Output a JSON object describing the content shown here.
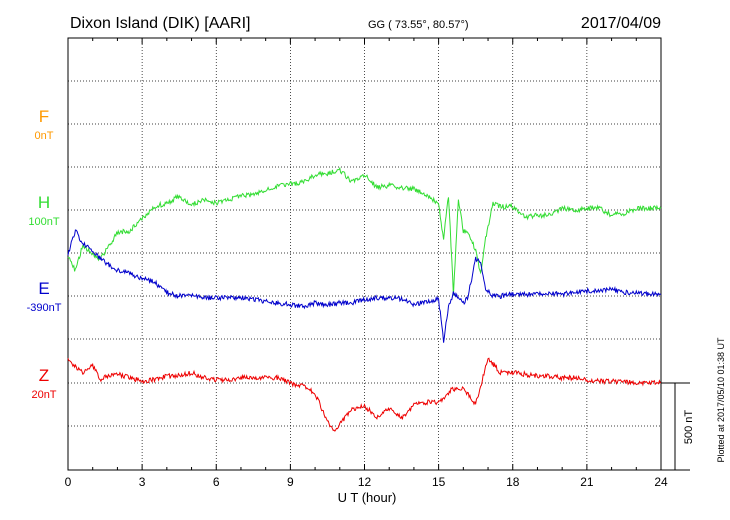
{
  "header": {
    "station": "Dixon Island (DIK)  [AARI]",
    "coords": "GG ( 73.55°,  80.57°)",
    "date": "2017/04/09"
  },
  "footer": {
    "plotted": "Plotted at 2017/05/10 01:38 UT",
    "scale_label": "500 nT"
  },
  "chart_data": {
    "type": "line",
    "xlabel": "U T (hour)",
    "xlim": [
      0,
      24
    ],
    "xticks": [
      "0",
      "3",
      "6",
      "9",
      "12",
      "15",
      "18",
      "21",
      "24"
    ],
    "grid": true,
    "scale_bar_nT": 500,
    "series": [
      {
        "name": "F",
        "baseline_label": "0nT",
        "color": "#ff9900",
        "x": [],
        "y": []
      },
      {
        "name": "H",
        "baseline_label": "100nT",
        "color": "#33dd33",
        "x": [
          0,
          0.3,
          0.6,
          1.0,
          1.3,
          1.6,
          2.0,
          2.5,
          3.0,
          3.5,
          4.0,
          4.5,
          5.0,
          5.5,
          6.0,
          6.5,
          7.0,
          7.5,
          8.0,
          8.5,
          9.0,
          9.5,
          10.0,
          10.5,
          11.0,
          11.5,
          12.0,
          12.5,
          13.0,
          13.5,
          14.0,
          14.5,
          15.0,
          15.2,
          15.4,
          15.6,
          15.8,
          16.0,
          16.2,
          16.5,
          16.7,
          16.9,
          17.2,
          17.5,
          18.0,
          18.5,
          19.0,
          19.5,
          20.0,
          20.5,
          21.0,
          21.5,
          22.0,
          22.5,
          23.0,
          23.5,
          24.0
        ],
        "y": [
          -270,
          -350,
          -200,
          -260,
          -280,
          -220,
          -130,
          -120,
          -50,
          20,
          40,
          80,
          30,
          60,
          40,
          60,
          80,
          90,
          110,
          140,
          150,
          160,
          200,
          210,
          230,
          160,
          200,
          130,
          140,
          130,
          120,
          90,
          30,
          -170,
          80,
          -480,
          60,
          -120,
          -130,
          -230,
          -370,
          -160,
          40,
          20,
          20,
          -40,
          -30,
          -30,
          10,
          0,
          10,
          10,
          -30,
          -20,
          10,
          10,
          10
        ]
      },
      {
        "name": "E",
        "baseline_label": "-390nT",
        "color": "#0000cc",
        "x": [
          0,
          0.3,
          0.6,
          1.0,
          1.3,
          1.6,
          2.0,
          2.5,
          3.0,
          3.5,
          4.0,
          4.5,
          5.0,
          5.5,
          6.0,
          6.5,
          7.0,
          7.5,
          8.0,
          8.5,
          9.0,
          9.5,
          10.0,
          10.5,
          11.0,
          11.5,
          12.0,
          12.5,
          13.0,
          13.5,
          14.0,
          14.5,
          15.0,
          15.2,
          15.4,
          15.6,
          15.8,
          16.0,
          16.2,
          16.5,
          16.7,
          16.9,
          17.2,
          17.5,
          18.0,
          18.5,
          19.0,
          19.5,
          20.0,
          20.5,
          21.0,
          21.5,
          22.0,
          22.5,
          23.0,
          23.5,
          24.0
        ],
        "y": [
          240,
          380,
          300,
          260,
          220,
          180,
          150,
          130,
          100,
          80,
          20,
          0,
          0,
          -10,
          -10,
          -10,
          -10,
          -20,
          -30,
          -40,
          -50,
          -60,
          -40,
          -50,
          -40,
          -40,
          -20,
          -10,
          -10,
          -20,
          -50,
          -30,
          -20,
          -260,
          -60,
          20,
          -10,
          -40,
          0,
          220,
          180,
          40,
          0,
          0,
          10,
          10,
          10,
          20,
          10,
          20,
          30,
          30,
          40,
          20,
          20,
          10,
          10
        ]
      },
      {
        "name": "Z",
        "baseline_label": "20nT",
        "color": "#ee0000",
        "x": [
          0,
          0.3,
          0.6,
          1.0,
          1.3,
          1.6,
          2.0,
          2.5,
          3.0,
          3.5,
          4.0,
          4.5,
          5.0,
          5.5,
          6.0,
          6.5,
          7.0,
          7.5,
          8.0,
          8.5,
          9.0,
          9.5,
          10.0,
          10.5,
          10.8,
          11.0,
          11.5,
          12.0,
          12.5,
          13.0,
          13.5,
          14.0,
          14.5,
          15.0,
          15.5,
          16.0,
          16.5,
          17.0,
          17.5,
          18.0,
          18.5,
          19.0,
          19.5,
          20.0,
          20.5,
          21.0,
          21.5,
          22.0,
          22.5,
          23.0,
          23.5,
          24.0
        ],
        "y": [
          140,
          90,
          60,
          100,
          20,
          40,
          50,
          30,
          10,
          20,
          40,
          40,
          60,
          30,
          20,
          20,
          30,
          30,
          30,
          30,
          0,
          -20,
          -60,
          -220,
          -280,
          -240,
          -150,
          -130,
          -200,
          -150,
          -200,
          -130,
          -110,
          -110,
          -40,
          -30,
          -120,
          140,
          60,
          60,
          50,
          40,
          40,
          30,
          30,
          20,
          10,
          10,
          10,
          0,
          0,
          0
        ]
      }
    ]
  }
}
